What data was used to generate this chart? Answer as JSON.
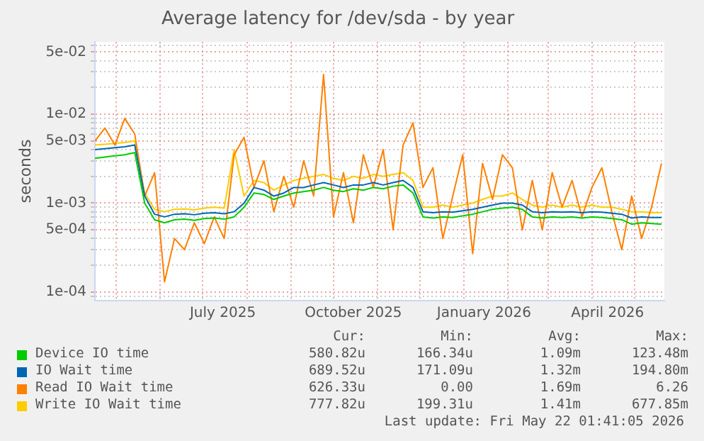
{
  "chart_data": {
    "type": "line",
    "title": "Average latency for /dev/sda - by year",
    "ylabel": "seconds",
    "log": true,
    "grid": true,
    "legend": "bottom",
    "marker": "none",
    "line_style": "solid",
    "x": [
      "2025-04-16",
      "2025-04-23",
      "2025-04-30",
      "2025-05-07",
      "2025-05-14",
      "2025-05-21",
      "2025-05-28",
      "2025-06-04",
      "2025-06-11",
      "2025-06-18",
      "2025-06-25",
      "2025-07-02",
      "2025-07-09",
      "2025-07-16",
      "2025-07-23",
      "2025-07-30",
      "2025-08-06",
      "2025-08-13",
      "2025-08-20",
      "2025-08-27",
      "2025-09-03",
      "2025-09-10",
      "2025-09-17",
      "2025-09-24",
      "2025-10-01",
      "2025-10-08",
      "2025-10-15",
      "2025-10-22",
      "2025-10-29",
      "2025-11-05",
      "2025-11-12",
      "2025-11-19",
      "2025-11-26",
      "2025-12-03",
      "2025-12-10",
      "2025-12-17",
      "2025-12-24",
      "2025-12-31",
      "2026-01-07",
      "2026-01-14",
      "2026-01-21",
      "2026-01-28",
      "2026-02-04",
      "2026-02-11",
      "2026-02-18",
      "2026-02-25",
      "2026-03-04",
      "2026-03-11",
      "2026-03-18",
      "2026-03-25",
      "2026-04-01",
      "2026-04-08",
      "2026-04-15",
      "2026-04-22",
      "2026-04-29",
      "2026-05-06",
      "2026-05-13",
      "2026-05-20"
    ],
    "xlim": [
      "2025-04-16",
      "2026-05-22"
    ],
    "xticks": [
      {
        "value": "2025-05-01",
        "label": null
      },
      {
        "value": "2025-06-01",
        "label": null
      },
      {
        "value": "2025-07-01",
        "label": null
      },
      {
        "value": "2025-07-15",
        "label": "July 2025"
      },
      {
        "value": "2025-08-01",
        "label": null
      },
      {
        "value": "2025-09-01",
        "label": null
      },
      {
        "value": "2025-10-01",
        "label": null
      },
      {
        "value": "2025-10-15",
        "label": "October 2025"
      },
      {
        "value": "2025-11-01",
        "label": null
      },
      {
        "value": "2025-12-01",
        "label": null
      },
      {
        "value": "2026-01-01",
        "label": null
      },
      {
        "value": "2026-01-15",
        "label": "January 2026"
      },
      {
        "value": "2026-02-01",
        "label": null
      },
      {
        "value": "2026-03-01",
        "label": null
      },
      {
        "value": "2026-04-01",
        "label": null
      },
      {
        "value": "2026-04-12",
        "label": "April 2026"
      },
      {
        "value": "2026-05-01",
        "label": null
      }
    ],
    "ylim": [
      8e-05,
      0.065
    ],
    "yticks": [
      {
        "value": 9e-05,
        "label": null
      },
      {
        "value": 0.0001,
        "label": "1e-04"
      },
      {
        "value": 0.0002,
        "label": null
      },
      {
        "value": 0.0003,
        "label": null
      },
      {
        "value": 0.0004,
        "label": null
      },
      {
        "value": 0.0005,
        "label": "5e-04"
      },
      {
        "value": 0.0006,
        "label": null
      },
      {
        "value": 0.0007,
        "label": null
      },
      {
        "value": 0.0008,
        "label": null
      },
      {
        "value": 0.0009,
        "label": null
      },
      {
        "value": 0.001,
        "label": "1e-03"
      },
      {
        "value": 0.002,
        "label": null
      },
      {
        "value": 0.003,
        "label": null
      },
      {
        "value": 0.004,
        "label": null
      },
      {
        "value": 0.005,
        "label": "5e-03"
      },
      {
        "value": 0.006,
        "label": null
      },
      {
        "value": 0.007,
        "label": null
      },
      {
        "value": 0.008,
        "label": null
      },
      {
        "value": 0.009,
        "label": null
      },
      {
        "value": 0.01,
        "label": "1e-02"
      },
      {
        "value": 0.02,
        "label": null
      },
      {
        "value": 0.03,
        "label": null
      },
      {
        "value": 0.04,
        "label": null
      },
      {
        "value": 0.05,
        "label": "5e-02"
      },
      {
        "value": 0.06,
        "label": null
      }
    ],
    "series": [
      {
        "name": "Device IO time",
        "color": "#00cc00",
        "values": [
          0.0032,
          0.0033,
          0.0034,
          0.0035,
          0.0037,
          0.001,
          0.00065,
          0.0006,
          0.00065,
          0.00066,
          0.00064,
          0.00067,
          0.00068,
          0.00066,
          0.0007,
          0.0009,
          0.0013,
          0.00125,
          0.0011,
          0.0012,
          0.0013,
          0.00135,
          0.0014,
          0.0015,
          0.0014,
          0.00135,
          0.00145,
          0.0014,
          0.0015,
          0.00145,
          0.00155,
          0.0016,
          0.0013,
          0.0007,
          0.00068,
          0.0007,
          0.00069,
          0.00072,
          0.00075,
          0.0008,
          0.00085,
          0.00088,
          0.0009,
          0.00085,
          0.0007,
          0.00068,
          0.0007,
          0.00069,
          0.0007,
          0.00068,
          0.0007,
          0.00069,
          0.00067,
          0.00065,
          0.00058,
          0.0006,
          0.00059,
          0.00058
        ]
      },
      {
        "name": "IO Wait time",
        "color": "#0066b3",
        "values": [
          0.004,
          0.0041,
          0.0042,
          0.0043,
          0.0045,
          0.0012,
          0.00075,
          0.0007,
          0.00075,
          0.00076,
          0.00074,
          0.00077,
          0.00078,
          0.00076,
          0.0008,
          0.001,
          0.0015,
          0.0014,
          0.0012,
          0.0013,
          0.0015,
          0.0015,
          0.0016,
          0.0017,
          0.0016,
          0.0015,
          0.0016,
          0.0016,
          0.0017,
          0.0016,
          0.0017,
          0.0018,
          0.0015,
          0.0008,
          0.00078,
          0.0008,
          0.00079,
          0.00082,
          0.00085,
          0.0009,
          0.00095,
          0.001,
          0.001,
          0.00095,
          0.0008,
          0.00078,
          0.0008,
          0.00079,
          0.0008,
          0.00078,
          0.0008,
          0.00079,
          0.00077,
          0.00075,
          0.00068,
          0.0007,
          0.00069,
          0.00069
        ]
      },
      {
        "name": "Read IO Wait time",
        "color": "#ff8000",
        "values": [
          0.005,
          0.007,
          0.0045,
          0.009,
          0.006,
          0.0012,
          0.0022,
          0.00013,
          0.0004,
          0.0003,
          0.0006,
          0.00035,
          0.0007,
          0.0004,
          0.0035,
          0.0055,
          0.0015,
          0.003,
          0.0008,
          0.002,
          0.0009,
          0.003,
          0.0012,
          0.028,
          0.0007,
          0.0022,
          0.0006,
          0.0035,
          0.0015,
          0.004,
          0.0005,
          0.0045,
          0.008,
          0.0015,
          0.0025,
          0.0004,
          0.0012,
          0.0035,
          0.00027,
          0.0028,
          0.0011,
          0.0035,
          0.0025,
          0.0005,
          0.0018,
          0.0005,
          0.0022,
          0.0009,
          0.0018,
          0.0007,
          0.0015,
          0.0025,
          0.0008,
          0.0003,
          0.0012,
          0.0004,
          0.0009,
          0.0028
        ]
      },
      {
        "name": "Write IO Wait time",
        "color": "#ffcc00",
        "values": [
          0.0045,
          0.0046,
          0.0047,
          0.0048,
          0.005,
          0.0013,
          0.00085,
          0.0008,
          0.00085,
          0.00086,
          0.00084,
          0.00088,
          0.0009,
          0.00088,
          0.004,
          0.0012,
          0.0018,
          0.0017,
          0.0014,
          0.0016,
          0.0018,
          0.0019,
          0.002,
          0.0021,
          0.0019,
          0.0018,
          0.002,
          0.0019,
          0.0021,
          0.002,
          0.0021,
          0.0022,
          0.0018,
          0.0009,
          0.0009,
          0.00095,
          0.0009,
          0.00095,
          0.001,
          0.0011,
          0.0012,
          0.0012,
          0.0013,
          0.0011,
          0.00095,
          0.0009,
          0.00095,
          0.0009,
          0.00095,
          0.0009,
          0.00095,
          0.0009,
          0.0009,
          0.00085,
          0.0008,
          0.0008,
          0.00078,
          0.00078
        ]
      }
    ],
    "annotations": [
      "Cur:",
      "Min:",
      "Avg:",
      "Max:",
      "580.82u",
      "166.34u",
      "1.09m",
      "123.48m",
      "689.52u",
      "171.09u",
      "1.32m",
      "194.80m",
      "626.33u",
      "0.00",
      "1.69m",
      "6.26",
      "777.82u",
      "199.31u",
      "1.41m",
      "677.85m",
      "Last update: Fri May 22 01:41:05 2026"
    ]
  }
}
